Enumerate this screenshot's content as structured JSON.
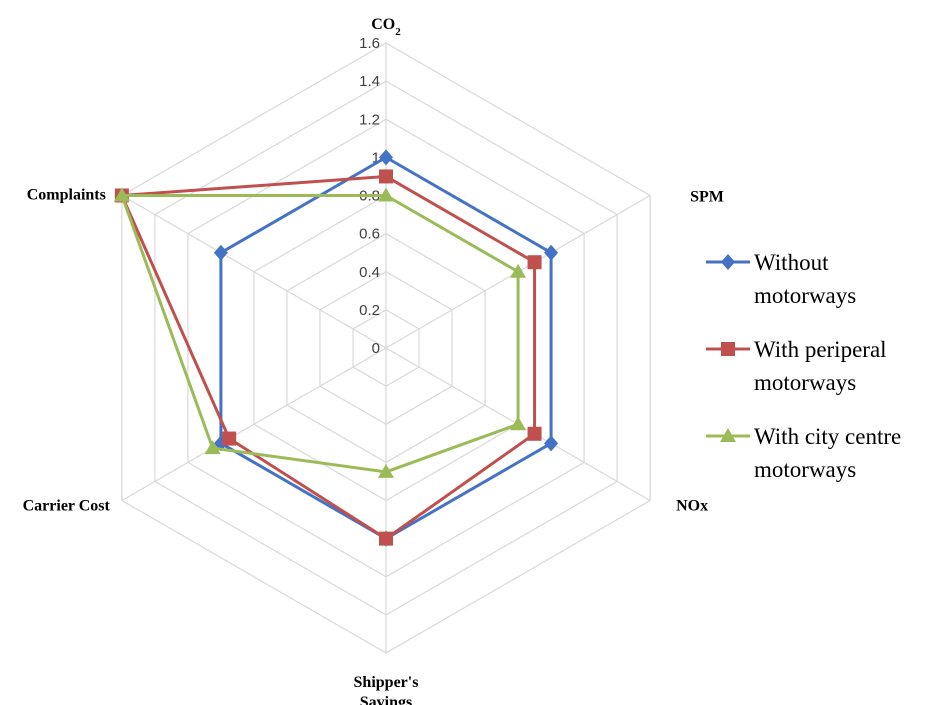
{
  "chart_data": {
    "type": "radar",
    "title": "",
    "axes": [
      "CO2",
      "SPM",
      "NOx",
      "Shipper's Savings",
      "Carrier Cost",
      "Complaints"
    ],
    "axis_labels": [
      {
        "main": "CO",
        "sub": "2"
      },
      {
        "main": "SPM",
        "sub": ""
      },
      {
        "main": "NOx",
        "sub": ""
      },
      {
        "main": "Shipper's",
        "line2": "Savings"
      },
      {
        "main": "Carrier Cost",
        "sub": ""
      },
      {
        "main": "Complaints",
        "sub": ""
      }
    ],
    "rlim": [
      0,
      1.6
    ],
    "ticks": [
      "0",
      "0.2",
      "0.4",
      "0.6",
      "0.8",
      "1",
      "1.2",
      "1.4",
      "1.6"
    ],
    "tick_values": [
      0,
      0.2,
      0.4,
      0.6,
      0.8,
      1.0,
      1.2,
      1.4,
      1.6
    ],
    "grid": true,
    "legend_position": "right",
    "series": [
      {
        "name": "Without motorways",
        "legend_lines": [
          "Without",
          "motorways"
        ],
        "color": "#4472C4",
        "marker": "diamond",
        "values": [
          1.0,
          1.0,
          1.0,
          1.0,
          1.0,
          1.0
        ]
      },
      {
        "name": "With periperal motorways",
        "legend_lines": [
          "With periperal",
          "motorways"
        ],
        "color": "#C0504D",
        "marker": "square",
        "values": [
          0.9,
          0.9,
          0.9,
          1.0,
          0.95,
          1.6
        ]
      },
      {
        "name": "With city centre motorways",
        "legend_lines": [
          "With city centre",
          "motorways"
        ],
        "color": "#9BBB59",
        "marker": "triangle",
        "values": [
          0.8,
          0.8,
          0.8,
          0.65,
          1.05,
          1.6
        ]
      }
    ]
  }
}
